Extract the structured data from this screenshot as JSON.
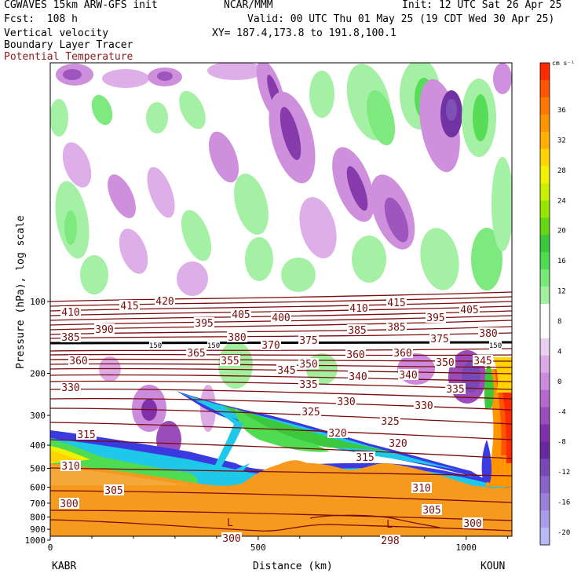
{
  "header": {
    "model": "CGWAVES 15km ARW-GFS init",
    "org": "NCAR/MMM",
    "init": "Init: 12 UTC Sat 26 Apr 25",
    "fcst": "Fcst:  108 h",
    "valid": "Valid: 00 UTC Thu 01 May 25 (19 CDT Wed 30 Apr 25)",
    "field1": "Vertical velocity",
    "xy": "XY= 187.4,173.8 to 191.8,100.1",
    "field2": "Boundary Layer Tracer",
    "field3": "Potential Temperature"
  },
  "colors": {
    "theta_line": "#7a0a0a",
    "tropopause_line": "#000000",
    "sfc_orange": "#f59a1e"
  },
  "chart_data": {
    "type": "heatmap",
    "xlabel": "Distance (km)",
    "ylabel": "Pressure (hPa), log scale",
    "x_ticks": [
      0,
      500,
      1000
    ],
    "y_ticks": [
      100,
      200,
      300,
      400,
      500,
      600,
      700,
      800,
      900,
      1000
    ],
    "xlim": [
      0,
      1110
    ],
    "endpoints": {
      "left": "KABR",
      "right": "KOUN"
    },
    "colorbar": {
      "unit": "cm s⁻¹",
      "ticks": [
        36,
        32,
        28,
        24,
        20,
        16,
        12,
        8,
        4,
        0,
        -4,
        -8,
        -12,
        -16,
        -20
      ],
      "colors": [
        "#ff2a00",
        "#ff5400",
        "#ff7800",
        "#ff9500",
        "#ffb000",
        "#ffd400",
        "#f0f000",
        "#c8f000",
        "#96e600",
        "#64d614",
        "#3cc83c",
        "#50dc50",
        "#78e878",
        "#a0f0a0",
        "#ffffff",
        "#ffffff",
        "#ead0f0",
        "#dcaae6",
        "#cc8adc",
        "#b46acc",
        "#9a4cbb",
        "#8030a8",
        "#6a28a0",
        "#7848b4",
        "#8a64c8",
        "#9a80d8",
        "#aa9ce8",
        "#bab8f6"
      ]
    },
    "theta_labels": [
      {
        "text": "415",
        "x": 165,
        "y": 390
      },
      {
        "text": "420",
        "x": 210,
        "y": 384
      },
      {
        "text": "410",
        "x": 90,
        "y": 398
      },
      {
        "text": "390",
        "x": 133,
        "y": 420
      },
      {
        "text": "395",
        "x": 260,
        "y": 412
      },
      {
        "text": "405",
        "x": 307,
        "y": 401
      },
      {
        "text": "400",
        "x": 358,
        "y": 405
      },
      {
        "text": "410",
        "x": 457,
        "y": 393
      },
      {
        "text": "415",
        "x": 505,
        "y": 386
      },
      {
        "text": "395",
        "x": 555,
        "y": 405
      },
      {
        "text": "405",
        "x": 598,
        "y": 395
      },
      {
        "text": "385",
        "x": 90,
        "y": 430
      },
      {
        "text": "380",
        "x": 302,
        "y": 430
      },
      {
        "text": "375",
        "x": 393,
        "y": 434
      },
      {
        "text": "370",
        "x": 345,
        "y": 440
      },
      {
        "text": "385",
        "x": 455,
        "y": 421
      },
      {
        "text": "385",
        "x": 505,
        "y": 417
      },
      {
        "text": "375",
        "x": 560,
        "y": 432
      },
      {
        "text": "380",
        "x": 622,
        "y": 425
      },
      {
        "text": "365",
        "x": 250,
        "y": 450
      },
      {
        "text": "360",
        "x": 100,
        "y": 460
      },
      {
        "text": "355",
        "x": 293,
        "y": 460
      },
      {
        "text": "345",
        "x": 365,
        "y": 472
      },
      {
        "text": "350",
        "x": 393,
        "y": 464
      },
      {
        "text": "360",
        "x": 453,
        "y": 452
      },
      {
        "text": "360",
        "x": 513,
        "y": 450
      },
      {
        "text": "350",
        "x": 567,
        "y": 462
      },
      {
        "text": "345",
        "x": 615,
        "y": 460
      },
      {
        "text": "340",
        "x": 456,
        "y": 480
      },
      {
        "text": "340",
        "x": 520,
        "y": 478
      },
      {
        "text": "330",
        "x": 90,
        "y": 494
      },
      {
        "text": "335",
        "x": 393,
        "y": 490
      },
      {
        "text": "335",
        "x": 580,
        "y": 496
      },
      {
        "text": "330",
        "x": 441,
        "y": 512
      },
      {
        "text": "330",
        "x": 540,
        "y": 517
      },
      {
        "text": "325",
        "x": 396,
        "y": 525
      },
      {
        "text": "325",
        "x": 497,
        "y": 537
      },
      {
        "text": "320",
        "x": 430,
        "y": 552
      },
      {
        "text": "320",
        "x": 507,
        "y": 565
      },
      {
        "text": "315",
        "x": 110,
        "y": 554
      },
      {
        "text": "315",
        "x": 465,
        "y": 583
      },
      {
        "text": "310",
        "x": 90,
        "y": 594
      },
      {
        "text": "310",
        "x": 537,
        "y": 622
      },
      {
        "text": "305",
        "x": 145,
        "y": 625
      },
      {
        "text": "305",
        "x": 550,
        "y": 650
      },
      {
        "text": "300",
        "x": 88,
        "y": 642
      },
      {
        "text": "300",
        "x": 602,
        "y": 667
      },
      {
        "text": "300",
        "x": 295,
        "y": 686
      },
      {
        "text": "298",
        "x": 497,
        "y": 689
      },
      {
        "text": "150",
        "x": 198,
        "y": 439
      },
      {
        "text": "150",
        "x": 272,
        "y": 439
      },
      {
        "text": "150",
        "x": 631,
        "y": 439
      }
    ],
    "low_labels": [
      {
        "text": "L",
        "x": 293,
        "y": 670
      },
      {
        "text": "L",
        "x": 496,
        "y": 672
      }
    ]
  }
}
